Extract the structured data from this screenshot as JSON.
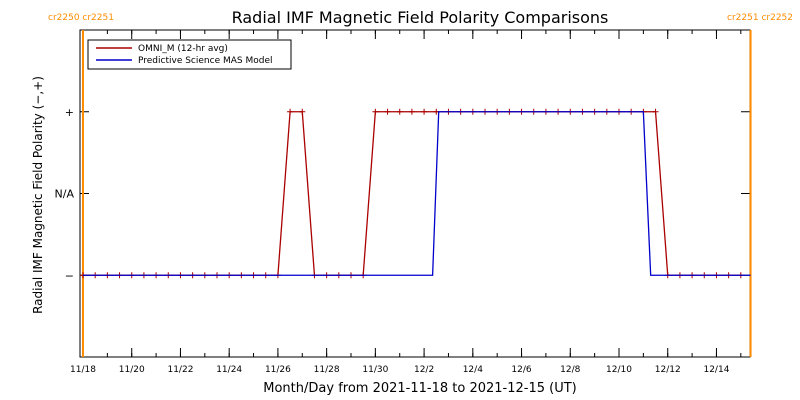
{
  "chart_data": {
    "type": "line",
    "title": "Radial IMF Magnetic Field Polarity Comparisons",
    "xlabel": "Month/Day from 2021-11-18 to 2021-12-15 (UT)",
    "ylabel": "Radial IMF Magnetic Field Polarity (−,+)",
    "x_tick_labels": [
      "11/18",
      "11/20",
      "11/22",
      "11/24",
      "11/26",
      "11/28",
      "11/30",
      "12/2",
      "12/4",
      "12/6",
      "12/8",
      "12/10",
      "12/12",
      "12/14"
    ],
    "x_tick_days": [
      0,
      2,
      4,
      6,
      8,
      10,
      12,
      14,
      16,
      18,
      20,
      22,
      24,
      26
    ],
    "xlim_days": [
      0,
      27.5
    ],
    "y_tick_labels": [
      "−",
      "N/A",
      "+"
    ],
    "y_tick_values": [
      -1,
      0,
      1
    ],
    "ylim": [
      -2,
      2
    ],
    "carrington_markers": [
      {
        "day": 0.0,
        "text": "cr2250 cr2251",
        "anchor": "left"
      },
      {
        "day": 27.4,
        "text": "cr2251 cr2252",
        "anchor": "right"
      }
    ],
    "legend": {
      "placement": "top-left"
    },
    "marker_color": "#ff8c00",
    "series": [
      {
        "name": "OMNI_M (12-hr avg)",
        "color": "#aa0000",
        "markers": true,
        "x_days": [
          0,
          0.5,
          1,
          1.5,
          2,
          2.5,
          3,
          3.5,
          4,
          4.5,
          5,
          5.5,
          6,
          6.5,
          7,
          7.5,
          8,
          8.5,
          9,
          9.5,
          10,
          10.5,
          11,
          11.5,
          12,
          12.5,
          13,
          13.5,
          14,
          14.5,
          15,
          15.5,
          16,
          16.5,
          17,
          17.5,
          18,
          18.5,
          19,
          19.5,
          20,
          20.5,
          21,
          21.5,
          22,
          22.5,
          23,
          23.5,
          24,
          24.5,
          25,
          25.5,
          26,
          26.5,
          27
        ],
        "values": [
          -1,
          -1,
          -1,
          -1,
          -1,
          -1,
          -1,
          -1,
          -1,
          -1,
          -1,
          -1,
          -1,
          -1,
          -1,
          -1,
          -1,
          1,
          1,
          -1,
          -1,
          -1,
          -1,
          -1,
          1,
          1,
          1,
          1,
          1,
          1,
          1,
          1,
          1,
          1,
          1,
          1,
          1,
          1,
          1,
          1,
          1,
          1,
          1,
          1,
          1,
          1,
          1,
          1,
          -1,
          -1,
          -1,
          -1,
          -1,
          -1,
          -1
        ]
      },
      {
        "name": "Predictive Science MAS Model",
        "color": "#0000cc",
        "markers": false,
        "x_days": [
          0,
          14.35,
          14.6,
          23.0,
          23.3,
          27.4
        ],
        "values": [
          -1,
          -1,
          1,
          1,
          -1,
          -1
        ]
      }
    ]
  }
}
